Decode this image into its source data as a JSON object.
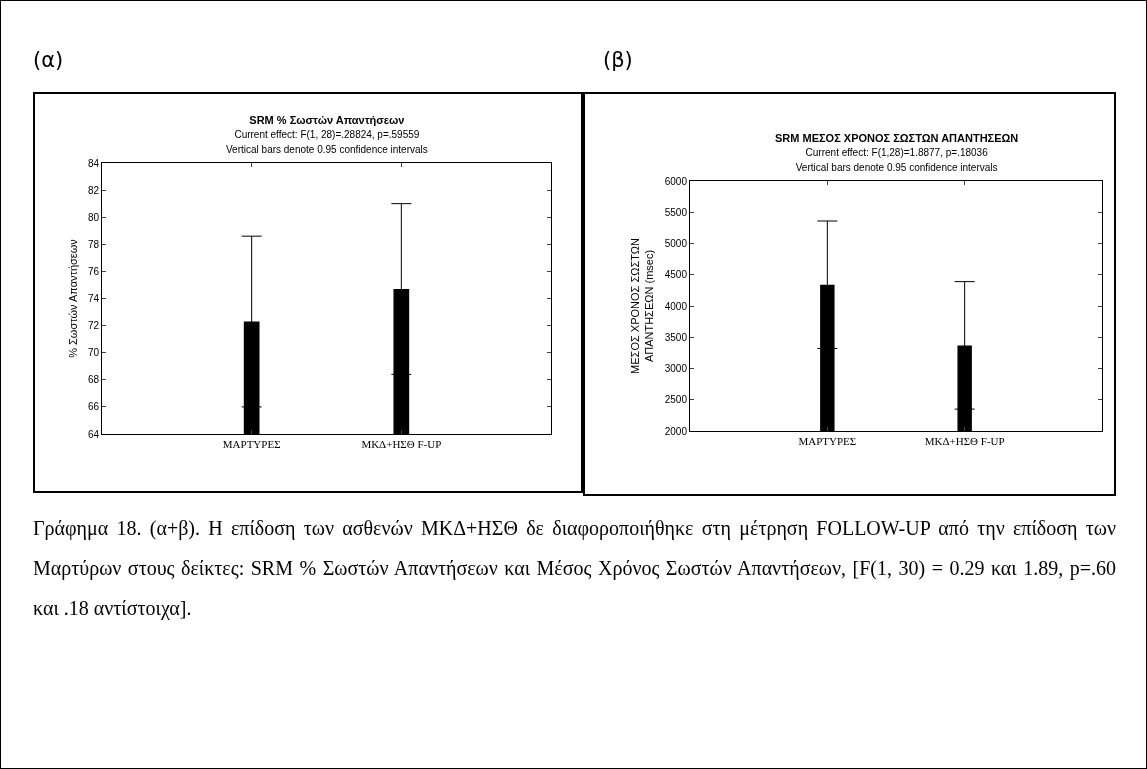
{
  "chart_data": [
    {
      "type": "bar",
      "title": "SRM % Σωστών Απαντήσεων",
      "subtitle": "Current effect: F(1, 28)=.28824, p=.59559",
      "ylabel": "% Σωστών Απαντήσεων",
      "annotations": [
        "(α)",
        "Vertical bars denote 0.95 confidence intervals"
      ],
      "categories": [
        "ΜΑΡΤΥΡΕΣ",
        "ΜΚΔ+ΗΣΘ F-UP"
      ],
      "values": [
        72.3,
        74.7
      ],
      "errors": [
        6.3,
        6.3
      ],
      "color": "#000000",
      "ylim": [
        64,
        84
      ],
      "yticks": [
        64,
        66,
        68,
        70,
        72,
        74,
        76,
        78,
        80,
        82,
        84
      ],
      "grid": false,
      "legend": false
    },
    {
      "type": "bar",
      "title": "SRM ΜΕΣΟΣ ΧΡΟΝΟΣ ΣΩΣΤΩΝ ΑΠΑΝΤΗΣΕΩΝ",
      "subtitle": "Current effect: F(1,28)=1.8877, p=.18036",
      "ylabel": "ΜΕΣΟΣ ΧΡΟΝΟΣ ΣΩΣΤΩΝ\nΑΠΑΝΤΗΣΕΩΝ (msec)",
      "annotations": [
        "(β)",
        "Vertical bars denote 0.95 confidence intervals",
        "Γράφημα 18. (α+β). Η επίδοση των ασθενών ΜΚΔ+ΗΣΘ δε διαφοροποιήθηκε στη μέτρηση FOLLOW-UP από την επίδοση των Μαρτύρων στους δείκτες: SRM % Σωστών Απαντήσεων και Μέσος Χρόνος Σωστών Απαντήσεων, [F(1, 30) = 0.29 και 1.89, p=.60 και .18 αντίστοιχα]."
      ],
      "categories": [
        "ΜΑΡΤΥΡΕΣ",
        "ΜΚΔ+ΗΣΘ F-UP"
      ],
      "values": [
        4340,
        3370
      ],
      "errors": [
        1020,
        1020
      ],
      "color": "#000000",
      "ylim": [
        2000,
        6000
      ],
      "yticks": [
        2000,
        2500,
        3000,
        3500,
        4000,
        4500,
        5000,
        5500,
        6000
      ],
      "grid": false,
      "legend": false
    }
  ]
}
